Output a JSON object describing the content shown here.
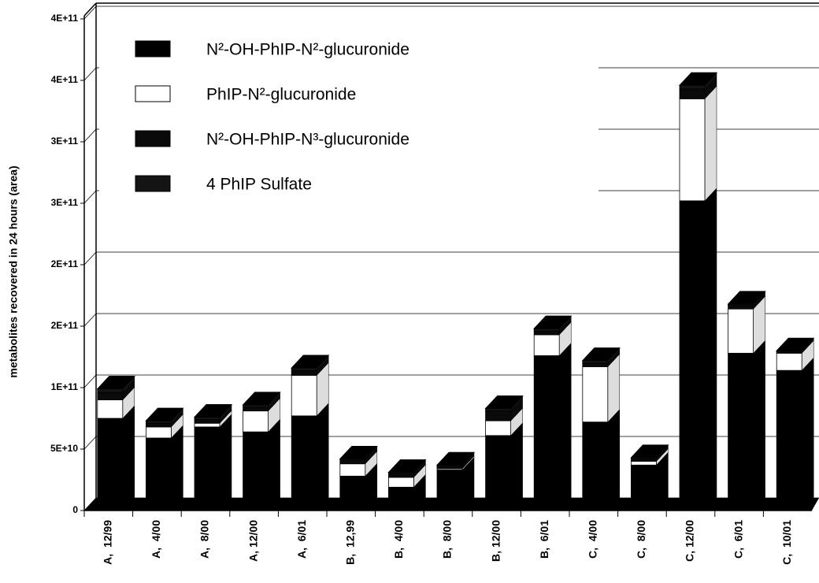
{
  "chart_data": {
    "type": "stacked-bar-3d",
    "y_label": "metabolites recovered in 24 hours (area)",
    "categories": [
      "A,  12/99",
      "A,  4/00",
      "A,  8/00",
      "A, 12/00",
      "A,  6/01",
      "B,  12,99",
      "B,  4/00",
      "B,  8/00",
      "B, 12/00",
      "B,  6/01",
      "C,  4/00",
      "C,  8/00",
      "C, 12/00",
      "C,  6/01",
      "C,  10/01"
    ],
    "series": [
      {
        "name": "N²-OH-PhIP-N²-glucuronide",
        "color": "#000000",
        "values": [
          75000000000,
          59000000000,
          68000000000,
          64000000000,
          77000000000,
          28000000000,
          19000000000,
          33000000000,
          61000000000,
          126000000000,
          72000000000,
          37000000000,
          252000000000,
          128000000000,
          114000000000
        ]
      },
      {
        "name": "PhIP-N²-glucuronide",
        "color": "#ffffff",
        "values": [
          15000000000,
          9000000000,
          3000000000,
          17000000000,
          33000000000,
          10000000000,
          8000000000,
          1000000000,
          12000000000,
          17000000000,
          45000000000,
          3000000000,
          83000000000,
          36000000000,
          14000000000
        ]
      },
      {
        "name": "N²-OH-PhIP-N³-glucuronide",
        "color": "#0a0a0a",
        "values": [
          6000000000,
          3000000000,
          3000000000,
          3000000000,
          4000000000,
          3000000000,
          3000000000,
          2000000000,
          8000000000,
          3000000000,
          3000000000,
          2000000000,
          8000000000,
          3000000000,
          1000000000
        ]
      },
      {
        "name": "4  PhIP Sulfate",
        "color": "#141414",
        "values": [
          3000000000,
          2000000000,
          2000000000,
          2000000000,
          2000000000,
          1000000000,
          1000000000,
          1000000000,
          2000000000,
          2000000000,
          2000000000,
          1000000000,
          3000000000,
          1000000000,
          1000000000
        ]
      }
    ],
    "ylim": [
      0,
      400000000000
    ],
    "yticks": [
      0,
      {
        "value": 50000000000,
        "label": "5E+10"
      },
      {
        "value": 100000000000,
        "label": "1E+11"
      },
      {
        "value": 150000000000,
        "label": "2E+11"
      },
      {
        "value": 200000000000,
        "label": "2E+11"
      },
      {
        "value": 250000000000,
        "label": "3E+11"
      },
      {
        "value": 300000000000,
        "label": "3E+11"
      },
      {
        "value": 350000000000,
        "label": "4E+11"
      },
      {
        "value": 400000000000,
        "label": "4E+11"
      }
    ],
    "grid": true
  }
}
